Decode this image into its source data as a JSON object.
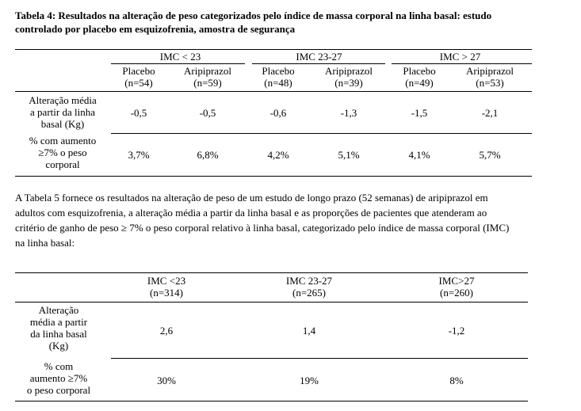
{
  "table4": {
    "title_line1": "Tabela 4:  Resultados na alteração de peso categorizados pelo índice de massa corporal na linha basal: estudo",
    "title_line2": "controlado por placebo em esquizofrenia, amostra de segurança",
    "groups": [
      "IMC < 23",
      "IMC 23-27",
      "IMC > 27"
    ],
    "arms": [
      {
        "name": "Placebo",
        "n": "(n=54)"
      },
      {
        "name": "Aripiprazol",
        "n": "(n=59)"
      },
      {
        "name": "Placebo",
        "n": "(n=48)"
      },
      {
        "name": "Aripiprazol",
        "n": "(n=39)"
      },
      {
        "name": "Placebo",
        "n": "(n=49)"
      },
      {
        "name": "Aripiprazol",
        "n": "(n=53)"
      }
    ],
    "rows": [
      {
        "label": [
          "Alteração média",
          "a partir da linha",
          "basal (Kg)"
        ],
        "values": [
          "-0,5",
          "-0,5",
          "-0,6",
          "-1,3",
          "-1,5",
          "-2,1"
        ]
      },
      {
        "label": [
          "% com aumento",
          "≥7% o peso",
          "corporal"
        ],
        "values": [
          "3,7%",
          "6,8%",
          "4,2%",
          "5,1%",
          "4,1%",
          "5,7%"
        ]
      }
    ]
  },
  "paragraph": {
    "lines": [
      "A Tabela 5 fornece os resultados na alteração de peso de um estudo de longo prazo (52 semanas) de aripiprazol em",
      "adultos com esquizofrenia, a alteração média a partir da linha basal e as proporções de pacientes que atenderam ao",
      "critério de ganho de peso ≥ 7% o peso corporal relativo à linha basal, categorizado pelo índice de massa corporal (IMC)",
      "na linha basal:"
    ]
  },
  "table5": {
    "columns": [
      {
        "name": "IMC <23",
        "n": "(n=314)"
      },
      {
        "name": "IMC 23-27",
        "n": "(n=265)"
      },
      {
        "name": "IMC>27",
        "n": "(n=260)"
      }
    ],
    "rows": [
      {
        "label": [
          "Alteração",
          "média a partir",
          "da linha basal",
          "(Kg)"
        ],
        "values": [
          "2,6",
          "1,4",
          "-1,2"
        ]
      },
      {
        "label": [
          "% com",
          "aumento ≥7%",
          "o peso corporal"
        ],
        "values": [
          "30%",
          "19%",
          "8%"
        ]
      }
    ]
  }
}
